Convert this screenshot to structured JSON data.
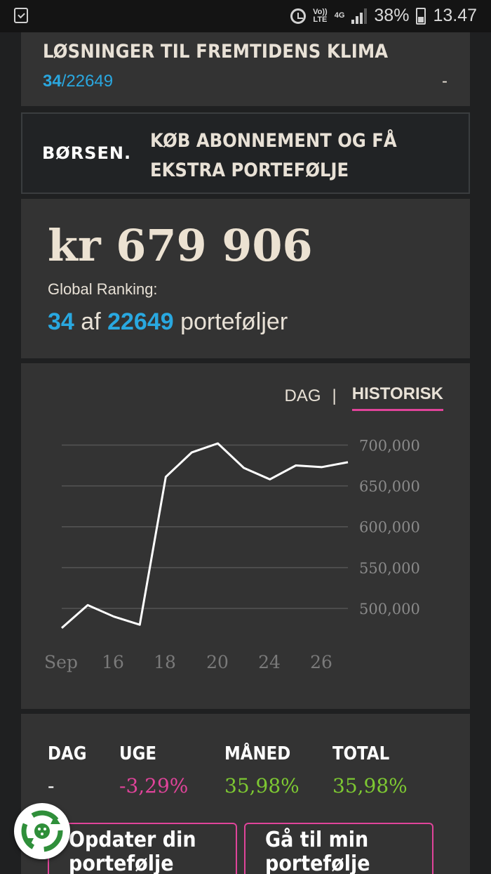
{
  "status_bar": {
    "network_top": "Vo))",
    "network_bottom": "LTE",
    "network_type": "4G",
    "battery": "38%",
    "time": "13.47",
    "icons": [
      "clipboard-check-icon",
      "alarm-icon",
      "signal-icon",
      "battery-icon"
    ]
  },
  "portfolio_header": {
    "title": "LØSNINGER TIL FREMTIDENS KLIMA",
    "rank": "34",
    "rank_total": "/22649",
    "change": "-"
  },
  "promo": {
    "logo": "BØRSEN.",
    "text": "KØB ABONNEMENT OG FÅ EKSTRA PORTEFØLJE"
  },
  "summary": {
    "value": "kr 679 906",
    "value_change": "-",
    "ranking_label": "Global Ranking:",
    "rank": "34",
    "of": "af",
    "total": "22649",
    "unit": "porteføljer"
  },
  "chart_tabs": {
    "day": "DAG",
    "separator": "|",
    "history": "HISTORISK",
    "active": "HISTORISK",
    "active_color": "#e0449a"
  },
  "chart_data": {
    "type": "line",
    "title": "",
    "xlabel": "",
    "ylabel": "",
    "x_tick_labels": [
      "Sep",
      "16",
      "18",
      "20",
      "24",
      "26"
    ],
    "y_tick_labels": [
      "700,000",
      "650,000",
      "600,000",
      "550,000",
      "500,000"
    ],
    "y_ticks": [
      700000,
      650000,
      600000,
      550000,
      500000
    ],
    "ylim": [
      475000,
      715000
    ],
    "grid": true,
    "line_color": "#ffffff",
    "series": [
      {
        "values": [
          476000,
          504000,
          490000,
          480000,
          661000,
          691000,
          702000,
          672000,
          658000,
          675000,
          673000,
          679000
        ]
      }
    ]
  },
  "performance": {
    "labels": [
      "DAG",
      "UGE",
      "MÅNED",
      "TOTAL"
    ],
    "values": [
      "-",
      "-3,29%",
      "35,98%",
      "35,98%"
    ],
    "colors": [
      "#ffffff",
      "#e0449a",
      "#7dc832",
      "#7dc832"
    ]
  },
  "buttons": {
    "update": "Opdater din portefølje",
    "goto": "Gå til min portefølje"
  },
  "fab": {
    "icon": "recycle-icon"
  }
}
